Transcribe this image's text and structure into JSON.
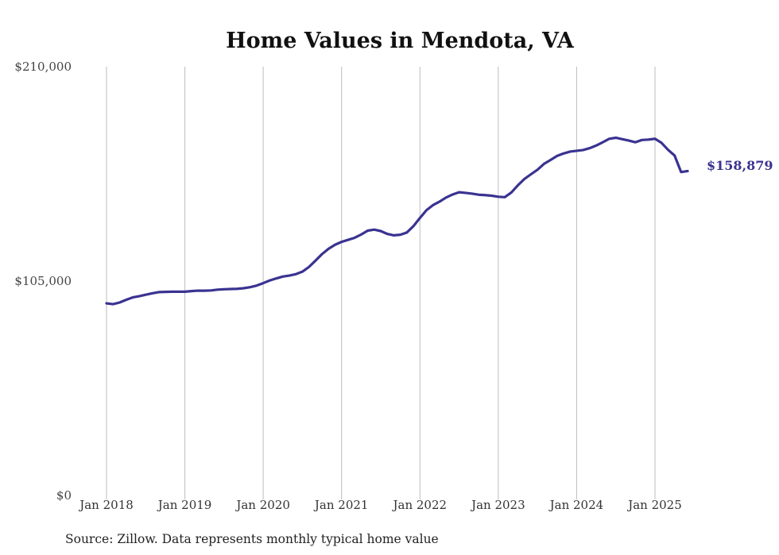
{
  "chart_data": {
    "type": "line",
    "title": "Home Values in Mendota, VA",
    "xlabel": "",
    "ylabel": "",
    "ylim": [
      0,
      210000
    ],
    "yticks": [
      {
        "value": 0,
        "label": "$0"
      },
      {
        "value": 105000,
        "label": "$105,000"
      },
      {
        "value": 210000,
        "label": "$210,000"
      }
    ],
    "xticks": [
      {
        "value": "2018-01",
        "label": "Jan 2018"
      },
      {
        "value": "2019-01",
        "label": "Jan 2019"
      },
      {
        "value": "2020-01",
        "label": "Jan 2020"
      },
      {
        "value": "2021-01",
        "label": "Jan 2021"
      },
      {
        "value": "2022-01",
        "label": "Jan 2022"
      },
      {
        "value": "2023-01",
        "label": "Jan 2023"
      },
      {
        "value": "2024-01",
        "label": "Jan 2024"
      },
      {
        "value": "2025-01",
        "label": "Jan 2025"
      }
    ],
    "grid": "vertical",
    "legend": "none",
    "line_color": "#3a3391",
    "end_label": "$158,879",
    "series": [
      {
        "x": [
          "2018-01",
          "2018-02",
          "2018-03",
          "2018-04",
          "2018-05",
          "2018-06",
          "2018-07",
          "2018-08",
          "2018-09",
          "2018-10",
          "2018-11",
          "2018-12",
          "2019-01",
          "2019-02",
          "2019-03",
          "2019-04",
          "2019-05",
          "2019-06",
          "2019-07",
          "2019-08",
          "2019-09",
          "2019-10",
          "2019-11",
          "2019-12",
          "2020-01",
          "2020-02",
          "2020-03",
          "2020-04",
          "2020-05",
          "2020-06",
          "2020-07",
          "2020-08",
          "2020-09",
          "2020-10",
          "2020-11",
          "2020-12",
          "2021-01",
          "2021-02",
          "2021-03",
          "2021-04",
          "2021-05",
          "2021-06",
          "2021-07",
          "2021-08",
          "2021-09",
          "2021-10",
          "2021-11",
          "2021-12",
          "2022-01",
          "2022-02",
          "2022-03",
          "2022-04",
          "2022-05",
          "2022-06",
          "2022-07",
          "2022-08",
          "2022-09",
          "2022-10",
          "2022-11",
          "2022-12",
          "2023-01",
          "2023-02",
          "2023-03",
          "2023-04",
          "2023-05",
          "2023-06",
          "2023-07",
          "2023-08",
          "2023-09",
          "2023-10",
          "2023-11",
          "2023-12",
          "2024-01",
          "2024-02",
          "2024-03",
          "2024-04",
          "2024-05",
          "2024-06",
          "2024-07",
          "2024-08",
          "2024-09",
          "2024-10",
          "2024-11",
          "2024-12",
          "2025-01",
          "2025-02",
          "2025-03",
          "2025-04",
          "2025-05",
          "2025-06"
        ],
        "values": [
          94100,
          93700,
          94500,
          95800,
          97000,
          97600,
          98300,
          99000,
          99600,
          99700,
          99800,
          99800,
          99800,
          100100,
          100300,
          100300,
          100400,
          100800,
          101000,
          101100,
          101200,
          101500,
          102000,
          102800,
          104000,
          105300,
          106300,
          107200,
          107700,
          108400,
          109600,
          111900,
          115000,
          118200,
          120800,
          122800,
          124200,
          125200,
          126200,
          127800,
          129700,
          130200,
          129500,
          128100,
          127400,
          127700,
          128800,
          131900,
          135900,
          139700,
          142200,
          143900,
          145900,
          147400,
          148500,
          148200,
          147800,
          147300,
          147100,
          146800,
          146300,
          146100,
          148400,
          151900,
          155000,
          157300,
          159500,
          162400,
          164300,
          166300,
          167500,
          168400,
          168800,
          169200,
          170100,
          171400,
          173000,
          174700,
          175200,
          174500,
          173800,
          173000,
          174100,
          174300,
          174700,
          172700,
          169300,
          166500,
          158400,
          158879
        ]
      }
    ]
  },
  "footer": {
    "source": "Source: Zillow. Data represents monthly typical home value"
  }
}
